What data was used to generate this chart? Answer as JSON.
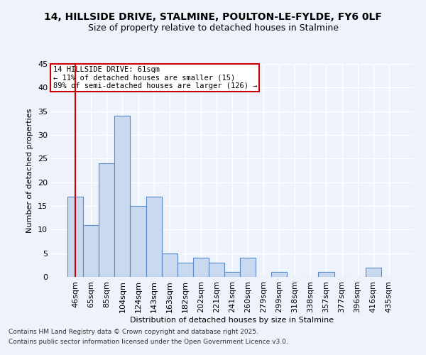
{
  "title_line1": "14, HILLSIDE DRIVE, STALMINE, POULTON-LE-FYLDE, FY6 0LF",
  "title_line2": "Size of property relative to detached houses in Stalmine",
  "xlabel": "Distribution of detached houses by size in Stalmine",
  "ylabel": "Number of detached properties",
  "footer_line1": "Contains HM Land Registry data © Crown copyright and database right 2025.",
  "footer_line2": "Contains public sector information licensed under the Open Government Licence v3.0.",
  "annotation_line1": "14 HILLSIDE DRIVE: 61sqm",
  "annotation_line2": "← 11% of detached houses are smaller (15)",
  "annotation_line3": "89% of semi-detached houses are larger (126) →",
  "categories": [
    "46sqm",
    "65sqm",
    "85sqm",
    "104sqm",
    "124sqm",
    "143sqm",
    "163sqm",
    "182sqm",
    "202sqm",
    "221sqm",
    "241sqm",
    "260sqm",
    "279sqm",
    "299sqm",
    "318sqm",
    "338sqm",
    "357sqm",
    "377sqm",
    "396sqm",
    "416sqm",
    "435sqm"
  ],
  "values": [
    17,
    11,
    24,
    34,
    15,
    17,
    5,
    3,
    4,
    3,
    1,
    4,
    0,
    1,
    0,
    0,
    1,
    0,
    0,
    2,
    0
  ],
  "bar_color": "#c9d9f0",
  "bar_edge_color": "#5a8ac6",
  "background_color": "#eef2fb",
  "grid_color": "#ffffff",
  "ylim": [
    0,
    45
  ],
  "yticks": [
    0,
    5,
    10,
    15,
    20,
    25,
    30,
    35,
    40,
    45
  ],
  "annotation_box_color": "#ffffff",
  "annotation_box_edge": "#cc0000",
  "red_line_x": 0,
  "title_fontsize": 10,
  "subtitle_fontsize": 9
}
